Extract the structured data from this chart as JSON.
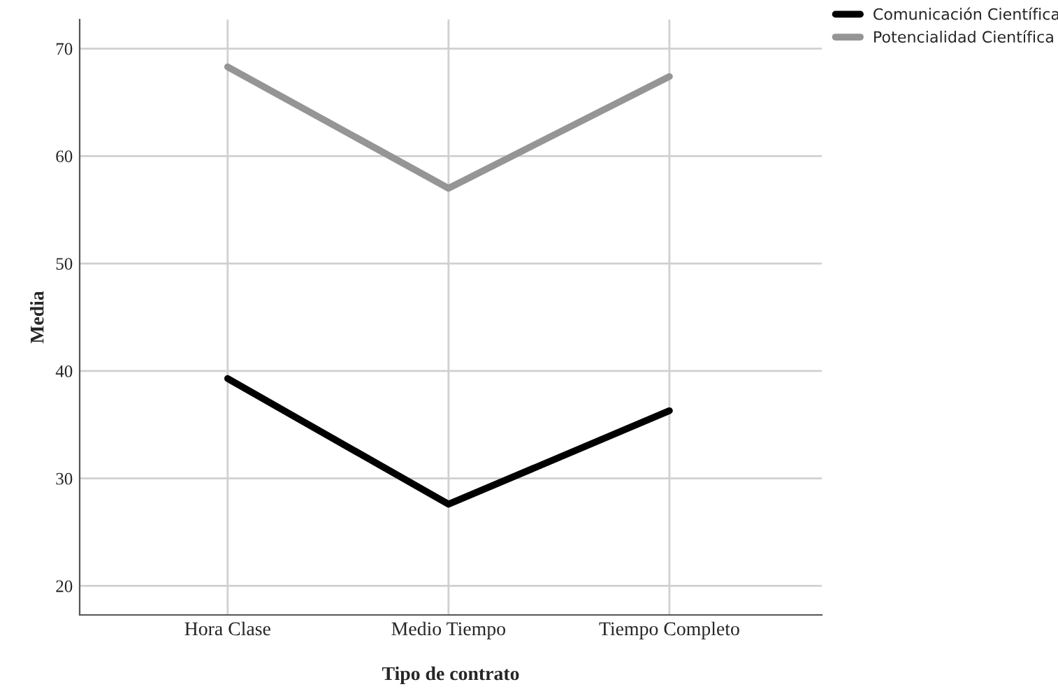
{
  "chart_data": {
    "type": "line",
    "xlabel": "Tipo de contrato",
    "ylabel": "Media",
    "categories": [
      "Hora Clase",
      "Medio Tiempo",
      "Tiempo Completo"
    ],
    "series": [
      {
        "name": "Comunicación Científica",
        "color": "#000000",
        "values": [
          39.3,
          27.6,
          36.3
        ]
      },
      {
        "name": "Potencialidad Científica",
        "color": "#959595",
        "values": [
          68.3,
          57.0,
          67.4
        ]
      }
    ],
    "ylim": [
      17.3,
      72.7
    ],
    "yticks": [
      20,
      30,
      40,
      50,
      60,
      70
    ],
    "grid": true,
    "legend": "top right",
    "marker": "none",
    "line_style": "solid"
  }
}
